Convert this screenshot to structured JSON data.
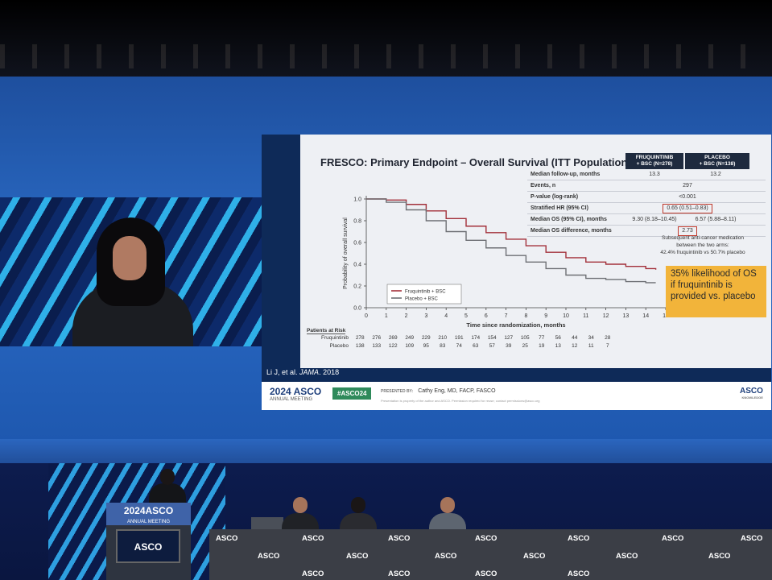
{
  "slide": {
    "title": "FRESCO: Primary Endpoint – Overall Survival (ITT Population)",
    "table": {
      "col1_header_line1": "FRUQUINTINIB",
      "col1_header_line2": "+ BSC (N=278)",
      "col2_header_line1": "PLACEBO",
      "col2_header_line2": "+ BSC (N=138)",
      "rows": [
        {
          "label": "Median follow-up, months",
          "v1": "13.3",
          "v2": "13.2"
        },
        {
          "label": "Events, n",
          "span": "297"
        },
        {
          "label": "P-value (log-rank)",
          "span": "<0.001"
        },
        {
          "label": "Stratified HR (95% CI)",
          "span": "0.65 (0.51–0.83)"
        },
        {
          "label": "Median OS (95% CI), months",
          "v1": "9.30 (8.18–10.45)",
          "v2": "6.57 (5.88–8.11)"
        },
        {
          "label": "Median OS difference, months",
          "span": "2.73"
        }
      ]
    },
    "note_line1": "Subsequent anti-cancer medication",
    "note_line2": "between the two arms:",
    "note_line3": "42.4% fruquintinib vs 50.7% placebo",
    "callout": "35%  likelihood of OS if fruquintinib is provided vs. placebo",
    "risk_title": "Patients at Risk",
    "citation_prefix": "Li J, et al.",
    "citation_journal": "JAMA",
    "citation_year": "2018"
  },
  "chart_data": {
    "type": "line",
    "title": "",
    "xlabel": "Time since randomization, months",
    "ylabel": "Probability of overall survival",
    "xlim": [
      0,
      15
    ],
    "ylim": [
      0,
      1.0
    ],
    "x_ticks": [
      0,
      1,
      2,
      3,
      4,
      5,
      6,
      7,
      8,
      9,
      10,
      11,
      12,
      13,
      14,
      15
    ],
    "y_ticks": [
      0,
      0.2,
      0.4,
      0.6,
      0.8,
      1.0
    ],
    "legend_position": "bottom-left",
    "series": [
      {
        "name": "Fruquintinib + BSC",
        "color": "#a3303a",
        "x": [
          0,
          1,
          2,
          3,
          4,
          5,
          6,
          7,
          8,
          9,
          10,
          11,
          12,
          13,
          14,
          14.5
        ],
        "y": [
          1.0,
          0.99,
          0.95,
          0.89,
          0.82,
          0.75,
          0.69,
          0.63,
          0.57,
          0.51,
          0.46,
          0.42,
          0.4,
          0.38,
          0.36,
          0.35
        ]
      },
      {
        "name": "Placebo + BSC",
        "color": "#6d6f74",
        "x": [
          0,
          1,
          2,
          3,
          4,
          5,
          6,
          7,
          8,
          9,
          10,
          11,
          12,
          13,
          14,
          14.5
        ],
        "y": [
          1.0,
          0.97,
          0.9,
          0.8,
          0.7,
          0.62,
          0.55,
          0.48,
          0.42,
          0.36,
          0.3,
          0.27,
          0.26,
          0.24,
          0.23,
          0.23
        ]
      }
    ],
    "at_risk": [
      {
        "label": "Fruquintinib",
        "values": [
          "278",
          "276",
          "269",
          "249",
          "229",
          "210",
          "191",
          "174",
          "154",
          "127",
          "105",
          "77",
          "56",
          "44",
          "34",
          "28"
        ]
      },
      {
        "label": "Placebo",
        "values": [
          "138",
          "133",
          "122",
          "109",
          "95",
          "83",
          "74",
          "63",
          "57",
          "39",
          "25",
          "19",
          "13",
          "12",
          "11",
          "7"
        ]
      }
    ]
  },
  "footer": {
    "year": "2024",
    "brand": "ASCO",
    "meeting": "ANNUAL MEETING",
    "hashtag": "#ASCO24",
    "presented_by_label": "PRESENTED BY:",
    "presenter": "Cathy Eng, MD, FACP, FASCO",
    "disclaimer": "Presentation is property of the author and ASCO. Permission required for reuse; contact permissions@asco.org",
    "knowledge_brand": "ASCO",
    "knowledge_sub": "KNOWLEDGE"
  },
  "stage": {
    "podium_year": "2024",
    "podium_brand": "ASCO",
    "podium_meeting": "ANNUAL MEETING",
    "podium_screen": "ASCO",
    "table_label": "ASCO"
  }
}
